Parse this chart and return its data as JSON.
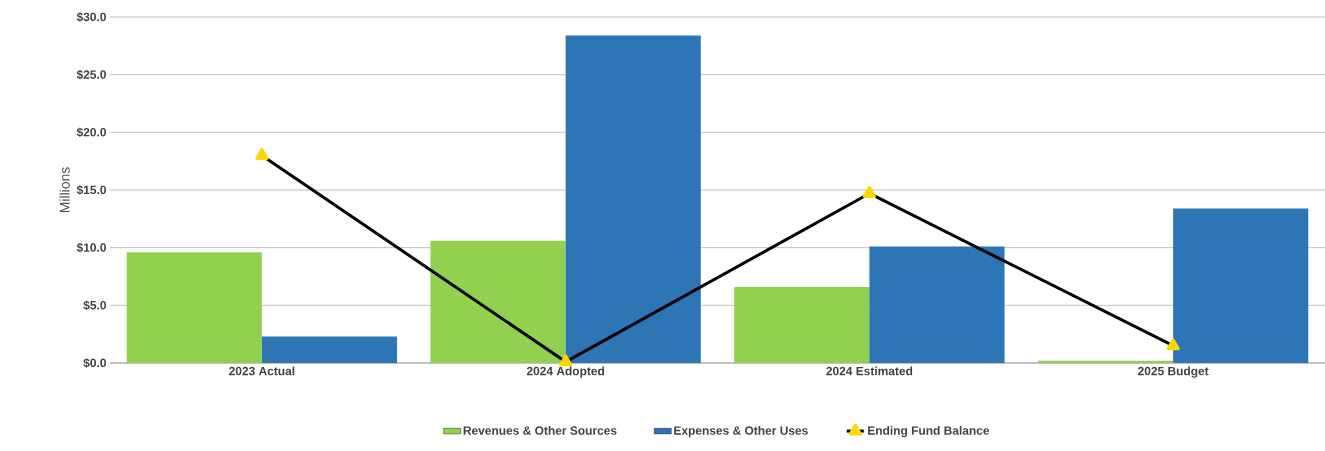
{
  "chart_data": {
    "type": "bar",
    "ylabel": "Millions",
    "categories": [
      "2023 Actual",
      "2024 Adopted",
      "2024 Estimated",
      "2025 Budget"
    ],
    "series": [
      {
        "name": "Revenues & Other Sources",
        "color": "#92d050",
        "values": [
          9.6,
          10.6,
          6.6,
          0.2
        ]
      },
      {
        "name": "Expenses & Other Uses",
        "color": "#2e75b6",
        "values": [
          2.3,
          28.4,
          10.1,
          13.4
        ]
      },
      {
        "name": "Ending Fund Balance",
        "type": "line",
        "color": "#000000",
        "marker": "triangle",
        "values": [
          18.0,
          0.1,
          14.7,
          1.5
        ]
      }
    ],
    "ylim": [
      0,
      30
    ],
    "yticks": [
      {
        "value": 0,
        "label": "$0.0"
      },
      {
        "value": 5,
        "label": "$5.0"
      },
      {
        "value": 10,
        "label": "$10.0"
      },
      {
        "value": 15,
        "label": "$15.0"
      },
      {
        "value": 20,
        "label": "$20.0"
      },
      {
        "value": 25,
        "label": "$25.0"
      },
      {
        "value": 30,
        "label": "$30.0"
      }
    ],
    "grid": "y",
    "legend": "bottom"
  }
}
